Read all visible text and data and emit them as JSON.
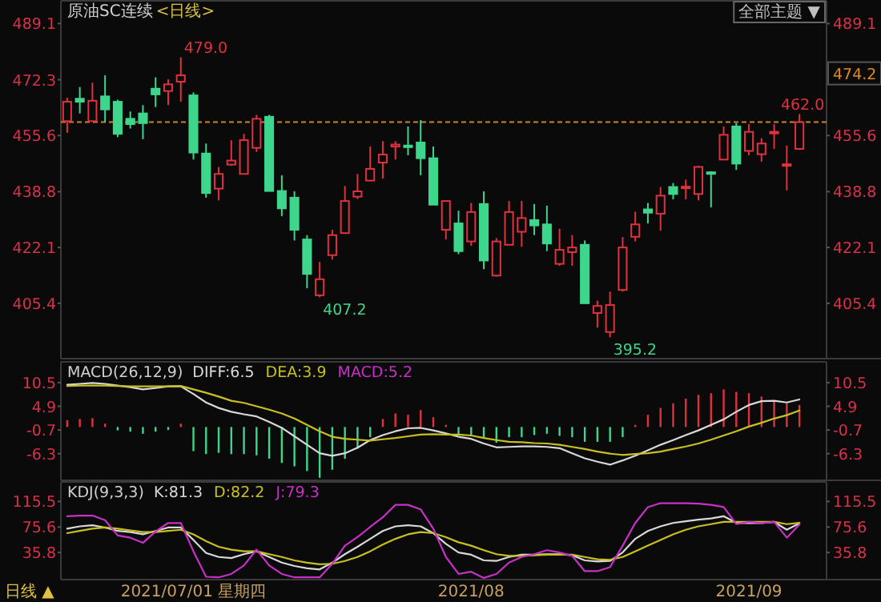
{
  "chart_data": [
    {
      "type": "candlestick",
      "title": "原油SC连续",
      "subtitle": "<日线>",
      "tick_labels": "y",
      "categories": [
        null,
        null,
        null,
        null,
        null,
        null,
        null,
        null,
        null,
        null,
        null,
        null,
        null,
        null,
        null,
        null,
        null,
        null,
        null,
        null,
        null,
        null,
        null,
        null,
        null,
        null,
        null,
        null,
        null,
        null,
        null,
        null,
        null,
        null,
        null,
        null,
        null,
        null,
        null,
        null,
        null,
        null,
        null,
        null,
        null,
        null,
        null,
        null,
        null,
        null,
        null,
        null,
        null,
        null,
        null,
        null,
        null,
        null,
        null
      ],
      "ohlc": [
        [
          459.9,
          466.9,
          456.4,
          465.7
        ],
        [
          466.6,
          470.1,
          462.2,
          465.7
        ],
        [
          459.9,
          471.4,
          459.9,
          466.0
        ],
        [
          467.3,
          473.6,
          459.6,
          463.4
        ],
        [
          465.7,
          466.3,
          455.1,
          456.1
        ],
        [
          460.6,
          462.8,
          457.7,
          459.0
        ],
        [
          462.2,
          464.7,
          454.5,
          459.3
        ],
        [
          469.6,
          473.0,
          464.1,
          467.9
        ],
        [
          468.9,
          472.4,
          464.7,
          470.9
        ],
        [
          471.7,
          479.0,
          465.7,
          473.6
        ],
        [
          467.6,
          468.5,
          448.4,
          450.5
        ],
        [
          450.2,
          453.2,
          437.0,
          438.4
        ],
        [
          439.7,
          446.2,
          436.2,
          444.1
        ],
        [
          446.9,
          454.2,
          446.5,
          448.1
        ],
        [
          444.1,
          456.1,
          444.1,
          454.2
        ],
        [
          451.9,
          461.8,
          450.7,
          460.6
        ],
        [
          461.2,
          461.8,
          439.0,
          439.0
        ],
        [
          439.0,
          443.7,
          431.5,
          433.8
        ],
        [
          437.0,
          438.9,
          424.2,
          427.4
        ],
        [
          424.5,
          425.8,
          409.9,
          414.2
        ],
        [
          407.8,
          417.8,
          407.2,
          412.6
        ],
        [
          419.8,
          427.4,
          418.5,
          425.8
        ],
        [
          426.4,
          440.5,
          426.4,
          436.0
        ],
        [
          437.3,
          444.1,
          436.6,
          438.9
        ],
        [
          442.1,
          452.3,
          442.1,
          445.6
        ],
        [
          447.5,
          453.9,
          442.7,
          449.9
        ],
        [
          452.3,
          453.9,
          448.4,
          452.9
        ],
        [
          452.6,
          458.3,
          449.7,
          452.3
        ],
        [
          453.5,
          460.2,
          443.7,
          448.8
        ],
        [
          448.8,
          452.3,
          434.9,
          434.9
        ],
        [
          427.4,
          436.0,
          424.5,
          436.0
        ],
        [
          429.3,
          433.1,
          420.1,
          421.0
        ],
        [
          423.9,
          435.4,
          422.6,
          432.7
        ],
        [
          435.1,
          438.9,
          415.6,
          418.2
        ],
        [
          413.7,
          424.9,
          413.4,
          423.9
        ],
        [
          422.9,
          436.0,
          422.9,
          432.7
        ],
        [
          426.8,
          436.0,
          422.3,
          430.9
        ],
        [
          430.3,
          435.1,
          425.8,
          428.7
        ],
        [
          429.0,
          434.6,
          421.0,
          423.3
        ],
        [
          417.2,
          427.7,
          416.6,
          421.4
        ],
        [
          420.7,
          425.8,
          416.6,
          422.1
        ],
        [
          422.9,
          424.2,
          405.4,
          405.4
        ],
        [
          402.5,
          406.2,
          398.1,
          404.6
        ],
        [
          396.8,
          408.9,
          395.2,
          404.9
        ],
        [
          409.4,
          425.2,
          408.9,
          422.1
        ],
        [
          425.3,
          432.8,
          423.9,
          429.0
        ],
        [
          433.5,
          435.4,
          429.3,
          432.5
        ],
        [
          432.2,
          440.2,
          427.1,
          437.6
        ],
        [
          440.2,
          441.4,
          436.5,
          438.1
        ],
        [
          440.1,
          442.4,
          436.5,
          440.3
        ],
        [
          438.1,
          446.5,
          436.2,
          446.2
        ],
        [
          444.6,
          444.9,
          434.1,
          444.3
        ],
        [
          448.4,
          458.3,
          448.4,
          455.8
        ],
        [
          458.3,
          459.3,
          445.3,
          447.2
        ],
        [
          451.0,
          459.0,
          449.7,
          456.7
        ],
        [
          450.0,
          454.8,
          447.8,
          453.2
        ],
        [
          456.3,
          459.0,
          451.6,
          456.7
        ],
        [
          446.7,
          452.6,
          439.2,
          447.0
        ],
        [
          451.6,
          462.0,
          451.3,
          459.6
        ]
      ],
      "colors": [
        "#e0313f",
        "#3dd68c",
        "#e0313f",
        "#3dd68c",
        "#3dd68c",
        "#3dd68c",
        "#3dd68c",
        "#3dd68c",
        "#e0313f",
        "#e0313f",
        "#3dd68c",
        "#3dd68c",
        "#e0313f",
        "#e0313f",
        "#e0313f",
        "#e0313f",
        "#3dd68c",
        "#3dd68c",
        "#3dd68c",
        "#3dd68c",
        "#e0313f",
        "#e0313f",
        "#e0313f",
        "#e0313f",
        "#e0313f",
        "#e0313f",
        "#e0313f",
        "#3dd68c",
        "#3dd68c",
        "#3dd68c",
        "#e0313f",
        "#3dd68c",
        "#e0313f",
        "#3dd68c",
        "#e0313f",
        "#e0313f",
        "#e0313f",
        "#3dd68c",
        "#3dd68c",
        "#e0313f",
        "#e0313f",
        "#3dd68c",
        "#e0313f",
        "#e0313f",
        "#e0313f",
        "#e0313f",
        "#3dd68c",
        "#e0313f",
        "#3dd68c",
        "#e0313f",
        "#e0313f",
        "#3dd68c",
        "#e0313f",
        "#3dd68c",
        "#e0313f",
        "#e0313f",
        "#e0313f",
        "#e0313f",
        "#e0313f"
      ],
      "ylim": [
        389.8,
        495.9
      ],
      "yticks": [
        405.4,
        422.1,
        438.8,
        455.6,
        472.3,
        489.1
      ],
      "y2lim": [
        389.8,
        495.9
      ],
      "y2ticks": [
        405.4,
        422.1,
        438.8,
        455.6,
        489.1
      ],
      "ref_lines": [
        {
          "axis": "y",
          "value": 459.6,
          "color": "#c8862a",
          "line_style": "dashed"
        }
      ],
      "annotations": [
        "479.0",
        "407.2",
        "395.2",
        "462.0",
        "474.2",
        "全部主题 ▼"
      ]
    },
    {
      "type": "bar",
      "title": "MACD(26,12,9)",
      "tick_labels": "y",
      "legend": "top left",
      "categories": [
        null,
        null,
        null,
        null,
        null,
        null,
        null,
        null,
        null,
        null,
        null,
        null,
        null,
        null,
        null,
        null,
        null,
        null,
        null,
        null,
        null,
        null,
        null,
        null,
        null,
        null,
        null,
        null,
        null,
        null,
        null,
        null,
        null,
        null,
        null,
        null,
        null,
        null,
        null,
        null,
        null,
        null,
        null,
        null,
        null,
        null,
        null,
        null,
        null,
        null,
        null,
        null,
        null,
        null,
        null,
        null,
        null,
        null,
        null
      ],
      "ylim": [
        -12.6,
        15.4
      ],
      "yticks": [
        -6.3,
        -0.7,
        4.9,
        10.5
      ],
      "y2lim": [
        -12.6,
        15.4
      ],
      "y2ticks": [
        -6.3,
        -0.7,
        4.9,
        10.5
      ],
      "series": [
        {
          "name": "DIFF:6.5",
          "type": "line",
          "color": "#d8d8d8",
          "values": [
            10.0,
            10.2,
            10.4,
            10.2,
            9.8,
            9.4,
            8.9,
            9.2,
            9.6,
            9.6,
            7.8,
            5.8,
            4.5,
            3.6,
            3.0,
            2.5,
            1.2,
            -0.2,
            -2.2,
            -4.2,
            -6.2,
            -6.8,
            -6.2,
            -4.9,
            -3.1,
            -1.9,
            -1.0,
            -0.3,
            -0.2,
            -0.8,
            -1.5,
            -2.3,
            -2.8,
            -3.9,
            -4.8,
            -4.7,
            -4.6,
            -4.6,
            -4.7,
            -5.0,
            -6.2,
            -7.4,
            -8.2,
            -8.9,
            -7.9,
            -6.8,
            -5.5,
            -4.2,
            -3.1,
            -1.9,
            -0.8,
            0.5,
            1.8,
            3.6,
            5.2,
            6.1,
            6.2,
            5.8,
            6.5
          ]
        },
        {
          "name": "DEA:3.9",
          "type": "line",
          "color": "#c8c020",
          "values": [
            9.7,
            9.8,
            9.8,
            9.8,
            9.7,
            9.6,
            9.6,
            9.6,
            9.6,
            9.7,
            8.9,
            8.1,
            7.2,
            6.2,
            5.7,
            4.9,
            4.1,
            3.2,
            2.0,
            0.5,
            -1.0,
            -2.3,
            -2.8,
            -3.0,
            -3.2,
            -2.9,
            -2.6,
            -2.2,
            -1.8,
            -1.7,
            -1.8,
            -1.8,
            -2.0,
            -2.6,
            -3.1,
            -3.5,
            -3.6,
            -3.8,
            -3.9,
            -4.2,
            -4.7,
            -5.2,
            -5.8,
            -6.3,
            -6.6,
            -6.4,
            -6.2,
            -5.8,
            -5.2,
            -4.6,
            -3.9,
            -3.0,
            -2.0,
            -1.0,
            0.1,
            1.0,
            2.0,
            2.8,
            3.9
          ]
        },
        {
          "name": "MACD:5.2",
          "type": "bar",
          "color": "#c830c8",
          "values": [
            1.6,
            1.9,
            2.1,
            0.8,
            -0.8,
            -1.1,
            -1.6,
            -1.1,
            -0.7,
            0.8,
            -5.7,
            -6.4,
            -6.1,
            -6.4,
            -6.4,
            -6.7,
            -7.5,
            -8.5,
            -9.3,
            -10.4,
            -12.0,
            -10.1,
            -7.5,
            -5.1,
            -2.4,
            1.9,
            3.2,
            2.9,
            4.0,
            2.3,
            0.5,
            -1.7,
            -2.1,
            -2.7,
            -3.7,
            -2.4,
            -2.4,
            -1.9,
            -1.6,
            -2.1,
            -2.4,
            -3.5,
            -3.5,
            -3.5,
            -2.4,
            0.5,
            2.9,
            4.5,
            5.6,
            6.7,
            7.6,
            8.0,
            8.9,
            8.3,
            8.0,
            7.2,
            6.3,
            5.6,
            5.2
          ],
          "colors": [
            "#e0313f",
            "#e0313f",
            "#e0313f",
            "#e0313f",
            "#3dd68c",
            "#3dd68c",
            "#3dd68c",
            "#3dd68c",
            "#3dd68c",
            "#e0313f",
            "#3dd68c",
            "#3dd68c",
            "#3dd68c",
            "#3dd68c",
            "#3dd68c",
            "#3dd68c",
            "#3dd68c",
            "#3dd68c",
            "#3dd68c",
            "#3dd68c",
            "#3dd68c",
            "#3dd68c",
            "#3dd68c",
            "#3dd68c",
            "#3dd68c",
            "#e0313f",
            "#e0313f",
            "#e0313f",
            "#e0313f",
            "#e0313f",
            "#e0313f",
            "#3dd68c",
            "#3dd68c",
            "#3dd68c",
            "#3dd68c",
            "#3dd68c",
            "#3dd68c",
            "#3dd68c",
            "#3dd68c",
            "#3dd68c",
            "#3dd68c",
            "#3dd68c",
            "#3dd68c",
            "#3dd68c",
            "#3dd68c",
            "#e0313f",
            "#e0313f",
            "#e0313f",
            "#e0313f",
            "#e0313f",
            "#e0313f",
            "#e0313f",
            "#e0313f",
            "#e0313f",
            "#e0313f",
            "#e0313f",
            "#e0313f",
            "#e0313f",
            "#e0313f"
          ]
        }
      ]
    },
    {
      "type": "line",
      "title": "KDJ(9,3,3)",
      "legend": "top left",
      "categories": [
        null,
        null,
        null,
        null,
        null,
        null,
        null,
        null,
        null,
        null,
        "2021/07/01 星期四",
        null,
        null,
        null,
        null,
        null,
        null,
        null,
        null,
        null,
        null,
        null,
        null,
        null,
        null,
        null,
        null,
        null,
        null,
        null,
        null,
        null,
        "2021/08",
        null,
        null,
        null,
        null,
        null,
        null,
        null,
        null,
        null,
        null,
        null,
        null,
        null,
        null,
        null,
        null,
        null,
        null,
        null,
        null,
        null,
        "2021/09",
        null,
        null,
        null,
        null
      ],
      "ylim": [
        -6.5,
        146
      ],
      "yticks": [
        35.8,
        75.6,
        115.5
      ],
      "y2lim": [
        -6.5,
        146
      ],
      "y2ticks": [
        35.8,
        75.6,
        115.5
      ],
      "series": [
        {
          "name": "K:81.3",
          "color": "#d8d8d8",
          "values": [
            73.0,
            76.6,
            78.4,
            74.8,
            69.5,
            67.7,
            64.2,
            69.5,
            74.8,
            74.8,
            55.4,
            35.0,
            28.8,
            27.1,
            33.2,
            37.7,
            28.8,
            20.0,
            14.7,
            11.1,
            9.4,
            20.0,
            33.2,
            44.7,
            57.1,
            69.5,
            76.6,
            78.4,
            76.6,
            66.0,
            49.2,
            35.9,
            32.4,
            23.5,
            22.6,
            28.8,
            32.4,
            32.4,
            33.2,
            33.2,
            31.5,
            23.5,
            21.8,
            22.6,
            35.9,
            57.1,
            69.5,
            76.6,
            81.9,
            84.5,
            87.2,
            89.0,
            92.5,
            81.9,
            81.9,
            81.9,
            83.7,
            71.3,
            81.3
          ]
        },
        {
          "name": "D:82.2",
          "color": "#c8c020",
          "values": [
            66.0,
            69.5,
            73.0,
            74.8,
            73.0,
            70.4,
            67.7,
            67.7,
            69.5,
            71.3,
            64.2,
            53.6,
            44.7,
            40.3,
            37.7,
            37.7,
            33.2,
            28.8,
            23.5,
            20.0,
            17.3,
            18.2,
            22.6,
            28.8,
            37.7,
            48.3,
            57.1,
            64.2,
            67.7,
            66.0,
            59.8,
            51.8,
            46.5,
            39.4,
            33.2,
            30.6,
            30.6,
            31.5,
            32.4,
            32.4,
            32.4,
            28.8,
            25.3,
            24.4,
            28.8,
            37.7,
            46.5,
            55.4,
            64.2,
            71.3,
            76.6,
            80.1,
            83.7,
            83.7,
            83.7,
            83.7,
            83.7,
            80.1,
            82.2
          ]
        },
        {
          "name": "J:79.3",
          "color": "#c830c8",
          "values": [
            92.5,
            93.4,
            93.4,
            86.3,
            62.4,
            58.9,
            50.9,
            68.6,
            81.9,
            81.9,
            37.7,
            -2.1,
            -3.0,
            2.3,
            15.6,
            40.3,
            15.6,
            2.3,
            -3.0,
            -3.0,
            -3.0,
            18.2,
            46.5,
            59.8,
            75.7,
            90.7,
            110.2,
            110.2,
            103.1,
            73.0,
            28.8,
            2.3,
            5.8,
            -3.9,
            2.3,
            20.0,
            28.8,
            33.2,
            39.4,
            35.9,
            30.6,
            6.7,
            6.7,
            12.9,
            46.5,
            81.9,
            106.7,
            112.8,
            112.8,
            112.8,
            112.0,
            110.2,
            106.7,
            80.1,
            83.7,
            81.9,
            83.7,
            58.9,
            79.3
          ]
        }
      ],
      "annotations": [
        "日线 ▲"
      ]
    }
  ]
}
